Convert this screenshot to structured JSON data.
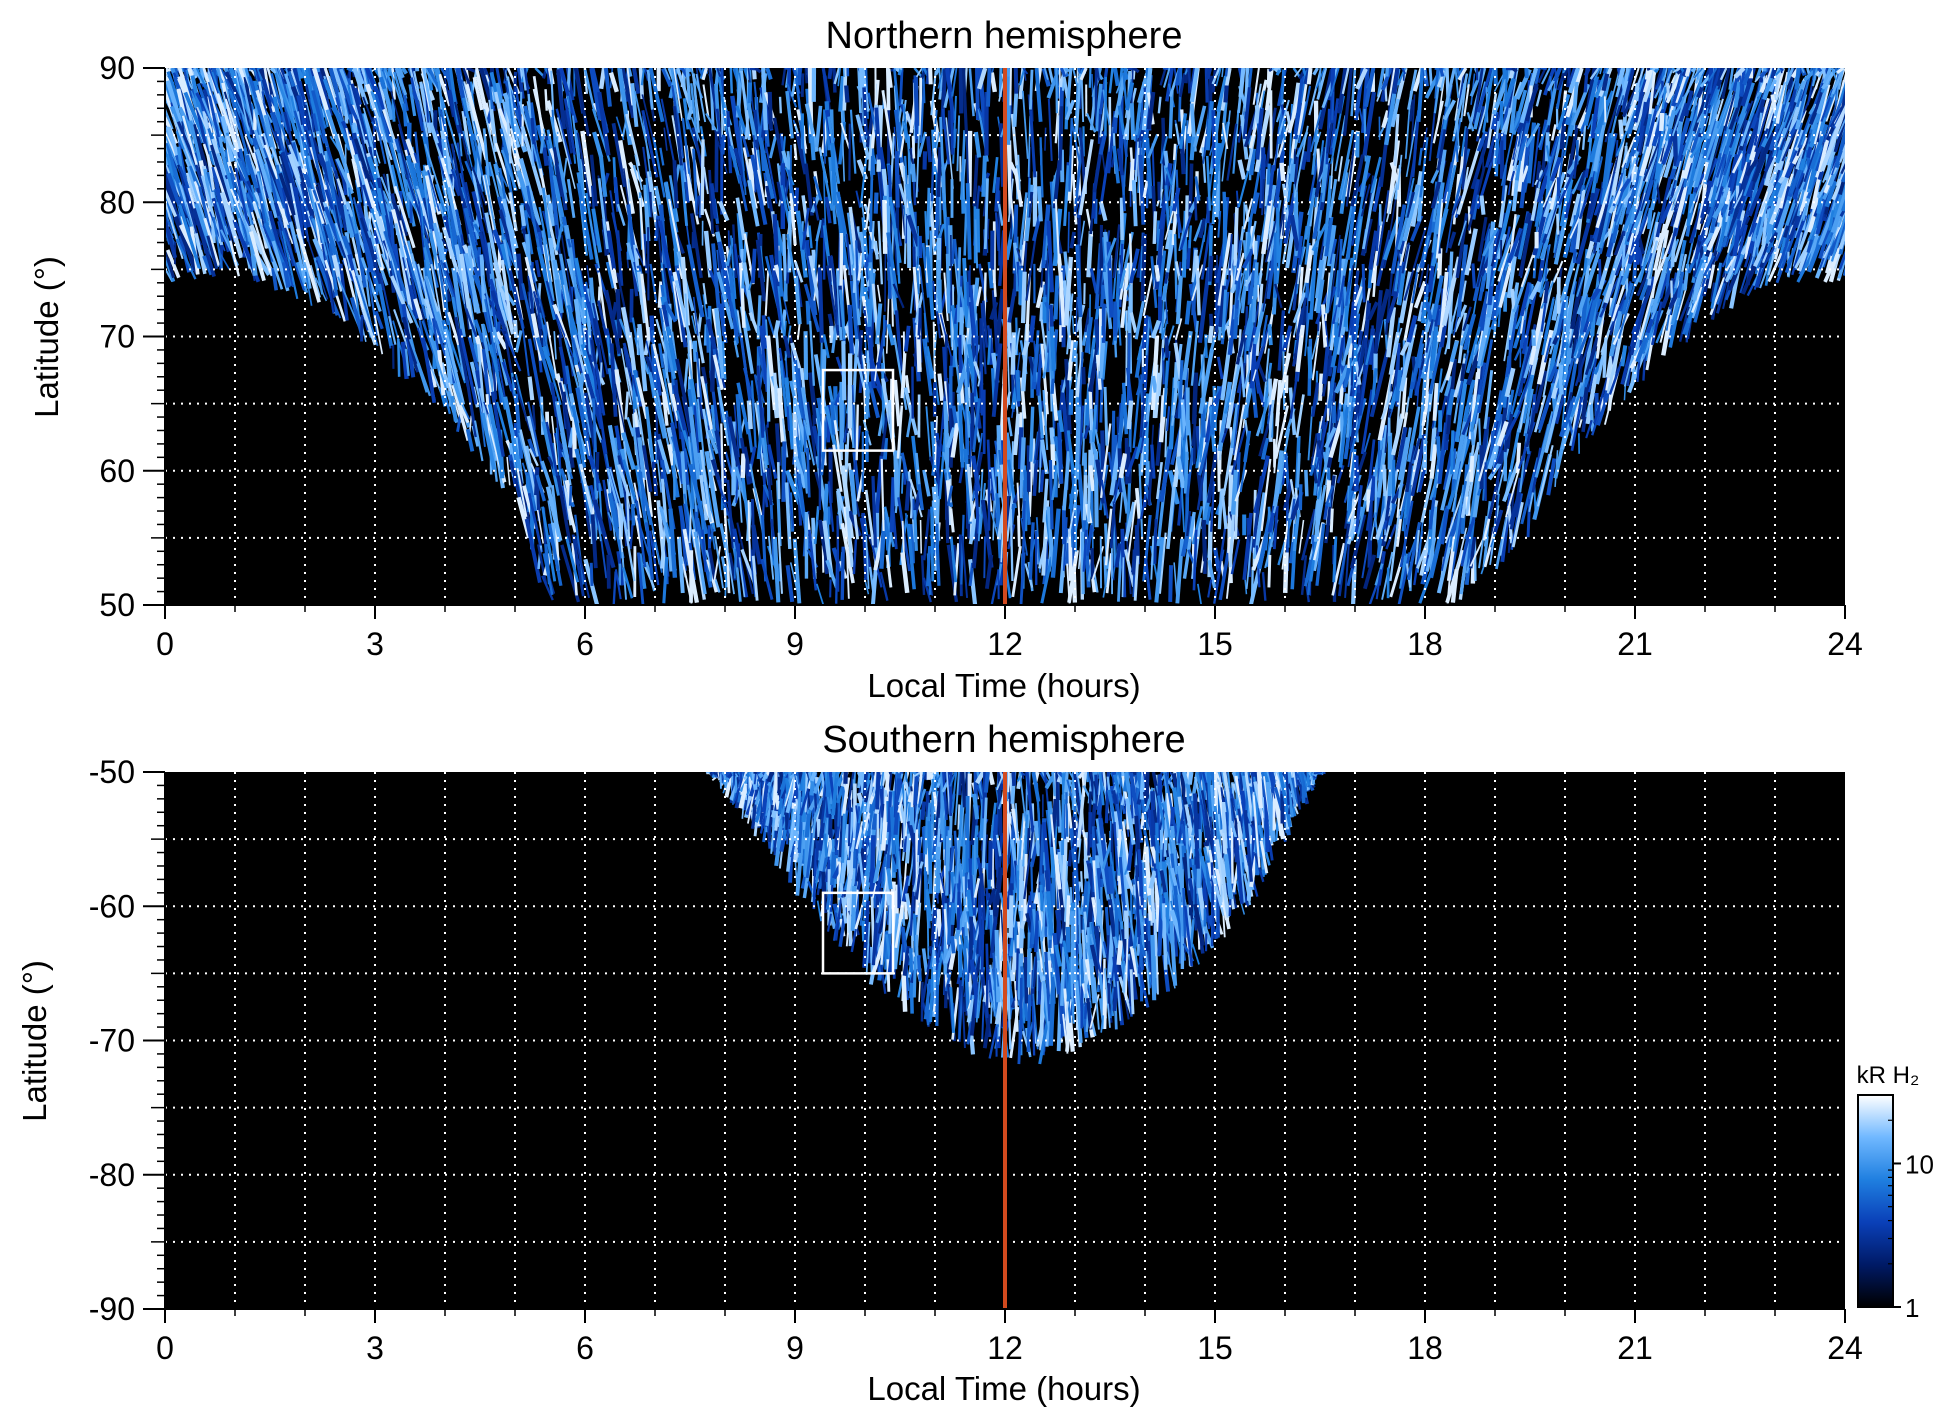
{
  "chart_data": [
    {
      "type": "heatmap",
      "title": "Northern hemisphere",
      "xlabel": "Local Time (hours)",
      "ylabel": "Latitude (°)",
      "xlim": [
        0,
        24
      ],
      "ylim": [
        50,
        90
      ],
      "xticks": [
        0,
        3,
        6,
        9,
        12,
        15,
        18,
        21,
        24
      ],
      "xtick_labels": [
        "0",
        "3",
        "6",
        "9",
        "12",
        "15",
        "18",
        "21",
        "24"
      ],
      "yticks": [
        50,
        60,
        70,
        80,
        90
      ],
      "ytick_labels": [
        "50",
        "60",
        "70",
        "80",
        "90"
      ],
      "grid": true,
      "grid_x_step_hours": 1,
      "grid_y_step_degrees": 5,
      "reference_line_x": 12,
      "reference_line_color": "#d24a1e",
      "box": {
        "x": [
          9.4,
          10.4
        ],
        "y": [
          61.5,
          67.5
        ]
      },
      "coverage": [
        {
          "lt": 0,
          "lat_min": 74
        },
        {
          "lt": 1,
          "lat_min": 74.5
        },
        {
          "lt": 2,
          "lat_min": 72.5
        },
        {
          "lt": 3,
          "lat_min": 69
        },
        {
          "lt": 4,
          "lat_min": 64
        },
        {
          "lt": 5,
          "lat_min": 57.5
        },
        {
          "lt": 5.5,
          "lat_min": 50
        },
        {
          "lt": 18.5,
          "lat_min": 50
        },
        {
          "lt": 19.5,
          "lat_min": 55
        },
        {
          "lt": 20,
          "lat_min": 60
        },
        {
          "lt": 21,
          "lat_min": 66
        },
        {
          "lt": 22,
          "lat_min": 71
        },
        {
          "lt": 23,
          "lat_min": 74
        },
        {
          "lt": 24,
          "lat_min": 74
        }
      ]
    },
    {
      "type": "heatmap",
      "title": "Southern hemisphere",
      "xlabel": "Local Time (hours)",
      "ylabel": "Latitude (°)",
      "xlim": [
        0,
        24
      ],
      "ylim": [
        -90,
        -50
      ],
      "xticks": [
        0,
        3,
        6,
        9,
        12,
        15,
        18,
        21,
        24
      ],
      "xtick_labels": [
        "0",
        "3",
        "6",
        "9",
        "12",
        "15",
        "18",
        "21",
        "24"
      ],
      "yticks": [
        -90,
        -80,
        -70,
        -60,
        -50
      ],
      "ytick_labels": [
        "-90",
        "-80",
        "-70",
        "-60",
        "-50"
      ],
      "grid": true,
      "grid_x_step_hours": 1,
      "grid_y_step_degrees": 5,
      "reference_line_x": 12,
      "reference_line_color": "#d24a1e",
      "box": {
        "x": [
          9.4,
          10.4
        ],
        "y": [
          -65,
          -59
        ]
      },
      "coverage": [
        {
          "lt": 7.8,
          "lat_max": -50
        },
        {
          "lt": 8.5,
          "lat_max": -55
        },
        {
          "lt": 9.5,
          "lat_max": -62
        },
        {
          "lt": 10.5,
          "lat_max": -68
        },
        {
          "lt": 11.5,
          "lat_max": -71
        },
        {
          "lt": 12.5,
          "lat_max": -72
        },
        {
          "lt": 13.5,
          "lat_max": -69.5
        },
        {
          "lt": 14.5,
          "lat_max": -66
        },
        {
          "lt": 15.5,
          "lat_max": -60
        },
        {
          "lt": 16.5,
          "lat_max": -50
        }
      ]
    }
  ],
  "colorbar": {
    "label": "kR H₂",
    "scale": "log",
    "range": [
      1,
      30
    ],
    "ticks": [
      1,
      10
    ],
    "tick_labels": [
      "1",
      "10"
    ],
    "colors": [
      "#000000",
      "#001a66",
      "#0a40b8",
      "#1f7fe0",
      "#70b8ff",
      "#ffffff"
    ]
  },
  "colors": {
    "background": "#000000",
    "grid": "#ffffff",
    "box": "#ffffff"
  }
}
